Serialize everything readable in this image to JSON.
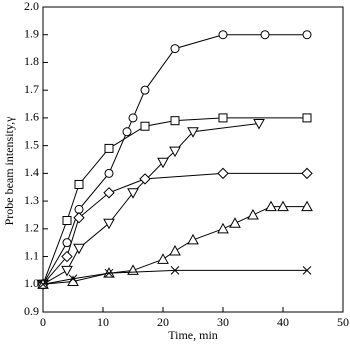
{
  "chart_data": {
    "type": "line",
    "xlabel": "Time, min",
    "ylabel": "Probe beam intensity,γ",
    "xlim": [
      0,
      50
    ],
    "xticks": [
      0,
      10,
      20,
      30,
      40,
      50
    ],
    "ylim": [
      0.9,
      2.0
    ],
    "yticks": [
      0.9,
      {
        "value": 1.0,
        "label": "1.0"
      },
      1.1,
      1.2,
      1.3,
      1.4,
      1.5,
      1.6,
      1.7,
      1.8,
      1.9,
      {
        "value": 2.0,
        "label": "2.0"
      }
    ],
    "series": [
      {
        "marker": "circle",
        "color": "#000",
        "x": [
          0,
          4,
          6,
          11,
          14,
          15,
          17,
          22,
          30,
          37,
          44
        ],
        "values": [
          1.0,
          1.15,
          1.27,
          1.4,
          1.55,
          1.6,
          1.7,
          1.85,
          1.9,
          1.9,
          1.9
        ]
      },
      {
        "marker": "square",
        "color": "#000",
        "x": [
          0,
          4,
          6,
          11,
          17,
          22,
          30,
          44
        ],
        "values": [
          1.0,
          1.23,
          1.36,
          1.49,
          1.57,
          1.59,
          1.6,
          1.6
        ]
      },
      {
        "marker": "triangle-down",
        "color": "#000",
        "x": [
          0,
          4,
          6,
          11,
          15,
          20,
          22,
          25,
          36
        ],
        "values": [
          1.0,
          1.05,
          1.13,
          1.22,
          1.33,
          1.44,
          1.48,
          1.55,
          1.58
        ]
      },
      {
        "marker": "diamond",
        "color": "#000",
        "x": [
          0,
          4,
          6,
          11,
          17,
          30,
          44
        ],
        "values": [
          1.0,
          1.1,
          1.24,
          1.33,
          1.38,
          1.4,
          1.4
        ]
      },
      {
        "marker": "triangle-up",
        "color": "#000",
        "x": [
          0,
          5,
          11,
          15,
          20,
          22,
          25,
          30,
          32,
          35,
          38,
          40,
          44
        ],
        "values": [
          1.0,
          1.01,
          1.04,
          1.05,
          1.09,
          1.12,
          1.16,
          1.2,
          1.22,
          1.25,
          1.28,
          1.28,
          1.28
        ]
      },
      {
        "marker": "cross",
        "color": "#000",
        "x": [
          0,
          5,
          11,
          22,
          44
        ],
        "values": [
          1.0,
          1.02,
          1.04,
          1.05,
          1.05
        ]
      }
    ]
  }
}
